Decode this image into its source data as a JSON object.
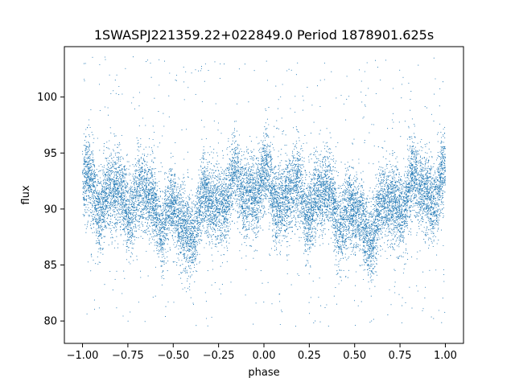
{
  "chart_data": {
    "type": "scatter",
    "title": "1SWASPJ221359.22+022849.0 Period 1878901.625s",
    "xlabel": "phase",
    "ylabel": "flux",
    "xlim": [
      -1.1,
      1.1
    ],
    "ylim": [
      78.0,
      104.5
    ],
    "xticks": [
      -1.0,
      -0.75,
      -0.5,
      -0.25,
      0.0,
      0.25,
      0.5,
      0.75,
      1.0
    ],
    "xtick_labels": [
      "−1.00",
      "−0.75",
      "−0.50",
      "−0.25",
      "0.00",
      "0.25",
      "0.50",
      "0.75",
      "1.00"
    ],
    "yticks": [
      80,
      85,
      90,
      95,
      100
    ],
    "ytick_labels": [
      "80",
      "85",
      "90",
      "95",
      "100"
    ],
    "grid": false,
    "legend": false,
    "marker_color": "#1f77b4",
    "series": [
      {
        "profile": {
          "phase": [
            -1.0,
            -0.9,
            -0.8,
            -0.7,
            -0.6,
            -0.5,
            -0.45,
            -0.4,
            -0.3,
            -0.2,
            -0.1,
            0.0,
            0.1,
            0.2,
            0.3,
            0.4,
            0.5,
            0.55,
            0.6,
            0.7,
            0.8,
            0.9,
            1.0
          ],
          "flux_center": [
            92.0,
            91.3,
            90.8,
            91.2,
            90.2,
            89.0,
            88.4,
            88.6,
            90.2,
            91.6,
            91.8,
            92.0,
            91.3,
            90.8,
            91.2,
            90.2,
            89.0,
            88.4,
            88.6,
            90.2,
            91.6,
            91.8,
            92.0
          ],
          "band_halfwidth": 3.2
        },
        "point_count": 15000,
        "outlier_range": [
          79.5,
          103.8
        ]
      }
    ]
  }
}
